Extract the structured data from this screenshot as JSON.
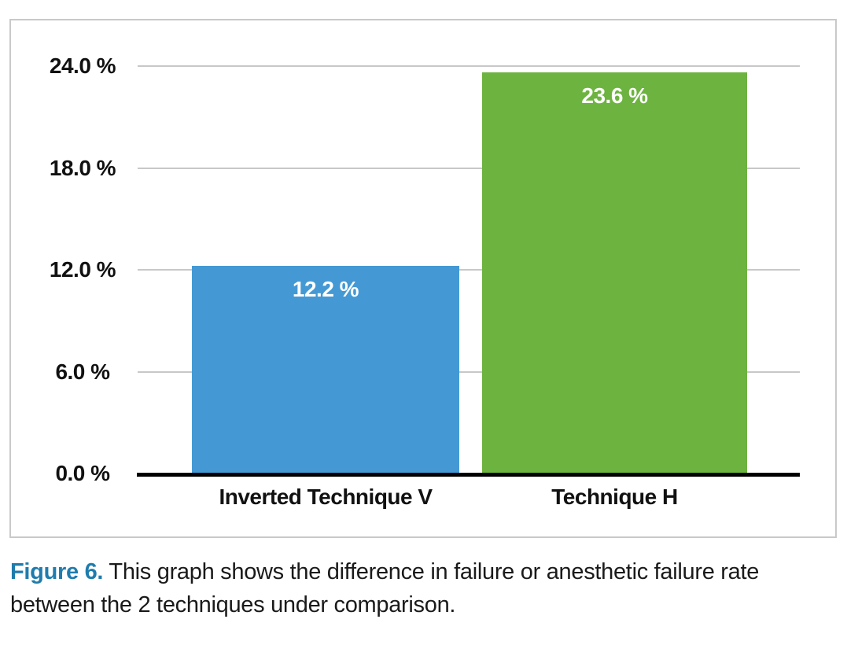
{
  "figure": {
    "caption_prefix": "Figure 6.",
    "caption_text": " This graph shows the difference in failure or anesthetic failure rate between the 2 techniques under comparison."
  },
  "colors": {
    "bar_blue": "#4499D4",
    "bar_green": "#6DB33F",
    "caption_accent": "#1F7CAD",
    "gridline": "#C8C8C8",
    "panel_border": "#C9C9C9",
    "axis": "#000000",
    "text": "#111111",
    "value_label": "#FFFFFF"
  },
  "chart_data": {
    "type": "bar",
    "categories": [
      "Inverted Technique V",
      "Technique H"
    ],
    "values": [
      12.2,
      23.6
    ],
    "value_labels": [
      "12.2 %",
      "23.6 %"
    ],
    "series_colors": [
      "#4499D4",
      "#6DB33F"
    ],
    "title": "",
    "xlabel": "",
    "ylabel": "",
    "ylim": [
      0,
      24
    ],
    "yticks": [
      {
        "value": 24,
        "label": "24.0 %"
      },
      {
        "value": 18,
        "label": "18.0 %"
      },
      {
        "value": 12,
        "label": "12.0 %"
      },
      {
        "value": 6,
        "label": "6.0 %"
      },
      {
        "value": 0,
        "label": "0.0 %"
      }
    ],
    "grid": "horizontal",
    "legend": "none",
    "value_label_position": "inside-top",
    "value_label_color": "#FFFFFF"
  }
}
